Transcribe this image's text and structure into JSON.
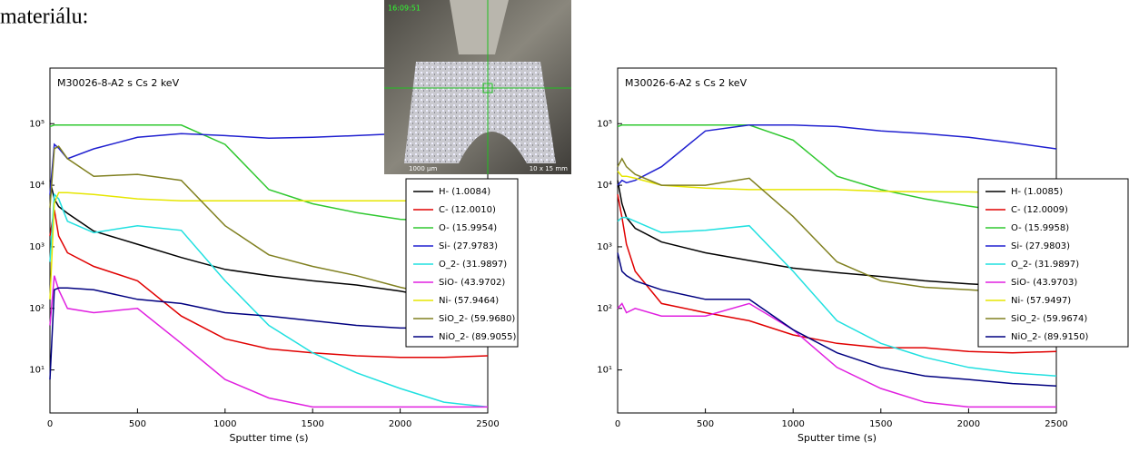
{
  "text": "materiálu:",
  "photo": {
    "timestamp": "16:09:51",
    "scale": "1000 µm",
    "field": "10 x 15 mm"
  },
  "chart_data": [
    {
      "type": "line",
      "title": "M30026-8-A2 s Cs 2 keV",
      "x_label": "Sputter time (s)",
      "log_y": true,
      "grid": false,
      "legend": "right",
      "x": [
        0,
        25,
        50,
        100,
        250,
        500,
        750,
        1000,
        1250,
        1500,
        1750,
        2000,
        2250,
        2500
      ],
      "xlim": [
        0,
        2500
      ],
      "xticks": [
        0,
        500,
        1000,
        1500,
        2000,
        2500
      ],
      "ylim": [
        2,
        800000
      ],
      "yticks": [
        {
          "value": 10,
          "label": "10¹"
        },
        {
          "value": 100,
          "label": "10²"
        },
        {
          "value": 1000,
          "label": "10³"
        },
        {
          "value": 10000,
          "label": "10⁴"
        },
        {
          "value": 100000,
          "label": "10⁵"
        }
      ],
      "series": [
        {
          "name": "H- (1.0084)",
          "color": "#000000",
          "values": [
            12000,
            6000,
            4500,
            3500,
            1800,
            1100,
            670,
            430,
            340,
            280,
            240,
            190,
            140,
            120
          ]
        },
        {
          "name": "C- (12.0010)",
          "color": "#e00000",
          "values": [
            1500,
            4000,
            1500,
            800,
            480,
            280,
            75,
            32,
            22,
            19,
            17,
            16,
            16,
            17
          ]
        },
        {
          "name": "O- (15.9954)",
          "color": "#30c830",
          "values": [
            90000,
            95000,
            95000,
            95000,
            95000,
            95000,
            95000,
            46000,
            8500,
            5000,
            3600,
            2800,
            2600,
            2600
          ]
        },
        {
          "name": "Si- (27.9783)",
          "color": "#2020d0",
          "values": [
            7000,
            46000,
            40000,
            27000,
            39000,
            60000,
            69000,
            64000,
            58000,
            60000,
            64000,
            69000,
            74000,
            79000
          ]
        },
        {
          "name": "O_2- (31.9897)",
          "color": "#20e0e0",
          "values": [
            570,
            7100,
            6000,
            2600,
            1700,
            2200,
            1850,
            280,
            53,
            19,
            9,
            5,
            3,
            2.5
          ]
        },
        {
          "name": "SiO- (43.9702)",
          "color": "#e020e0",
          "values": [
            53,
            340,
            200,
            100,
            85,
            100,
            27,
            7,
            3.5,
            2.5,
            2.5,
            2.5,
            2.5,
            2.5
          ]
        },
        {
          "name": "Ni- (57.9464)",
          "color": "#e6e600",
          "values": [
            140,
            5100,
            7600,
            7600,
            7100,
            6000,
            5600,
            5600,
            5600,
            5600,
            5600,
            5600,
            5600,
            5600
          ]
        },
        {
          "name": "SiO_2- (59.9680)",
          "color": "#808020",
          "values": [
            4300,
            39000,
            43000,
            27000,
            14000,
            15000,
            12000,
            2200,
            740,
            480,
            340,
            220,
            155,
            120
          ]
        },
        {
          "name": "NiO_2- (89.9055)",
          "color": "#000080",
          "values": [
            7,
            200,
            215,
            215,
            200,
            140,
            120,
            85,
            75,
            63,
            53,
            48,
            48,
            50
          ]
        }
      ]
    },
    {
      "type": "line",
      "title": "M30026-6-A2 s Cs 2 keV",
      "x_label": "Sputter time (s)",
      "log_y": true,
      "grid": false,
      "legend": "right",
      "x": [
        0,
        25,
        50,
        100,
        250,
        500,
        750,
        1000,
        1250,
        1500,
        1750,
        2000,
        2250,
        2500
      ],
      "xlim": [
        0,
        2500
      ],
      "xticks": [
        0,
        500,
        1000,
        1500,
        2000,
        2500
      ],
      "ylim": [
        2,
        800000
      ],
      "yticks": [
        {
          "value": 10,
          "label": "10¹"
        },
        {
          "value": 100,
          "label": "10²"
        },
        {
          "value": 1000,
          "label": "10³"
        },
        {
          "value": 10000,
          "label": "10⁴"
        },
        {
          "value": 100000,
          "label": "10⁵"
        }
      ],
      "series": [
        {
          "name": "H- (1.0085)",
          "color": "#000000",
          "values": [
            12000,
            5000,
            3000,
            2000,
            1200,
            800,
            600,
            450,
            380,
            330,
            280,
            250,
            230,
            210
          ]
        },
        {
          "name": "C- (12.0009)",
          "color": "#e00000",
          "values": [
            7100,
            3000,
            1100,
            400,
            120,
            85,
            63,
            37,
            27,
            23,
            23,
            20,
            19,
            20
          ]
        },
        {
          "name": "O- (15.9958)",
          "color": "#30c830",
          "values": [
            90000,
            95000,
            95000,
            95000,
            95000,
            95000,
            95000,
            54000,
            14000,
            8500,
            6000,
            4600,
            3600,
            3100
          ]
        },
        {
          "name": "Si- (27.9803)",
          "color": "#2020d0",
          "values": [
            10000,
            12000,
            11000,
            12000,
            20000,
            76000,
            95000,
            95000,
            90000,
            76000,
            69000,
            60000,
            49000,
            39000
          ]
        },
        {
          "name": "O_2- (31.9897)",
          "color": "#20e0e0",
          "values": [
            2600,
            3000,
            3000,
            2600,
            1700,
            1850,
            2200,
            400,
            63,
            27,
            16,
            11,
            9,
            8
          ]
        },
        {
          "name": "SiO- (43.9703)",
          "color": "#e020e0",
          "values": [
            100,
            120,
            85,
            100,
            75,
            75,
            120,
            45,
            11,
            5,
            3,
            2.5,
            2.5,
            2.5
          ]
        },
        {
          "name": "Ni- (57.9497)",
          "color": "#e6e600",
          "values": [
            17000,
            14000,
            14000,
            13000,
            10000,
            9000,
            8500,
            8500,
            8500,
            8000,
            7800,
            7800,
            7500,
            7100
          ]
        },
        {
          "name": "SiO_2- (59.9674)",
          "color": "#808020",
          "values": [
            20000,
            27000,
            20000,
            15000,
            10000,
            10000,
            13000,
            3100,
            570,
            280,
            220,
            200,
            180,
            170
          ]
        },
        {
          "name": "NiO_2- (89.9150)",
          "color": "#000080",
          "values": [
            800,
            400,
            340,
            280,
            200,
            140,
            140,
            45,
            19,
            11,
            8,
            7,
            6,
            5.5
          ]
        }
      ]
    }
  ]
}
